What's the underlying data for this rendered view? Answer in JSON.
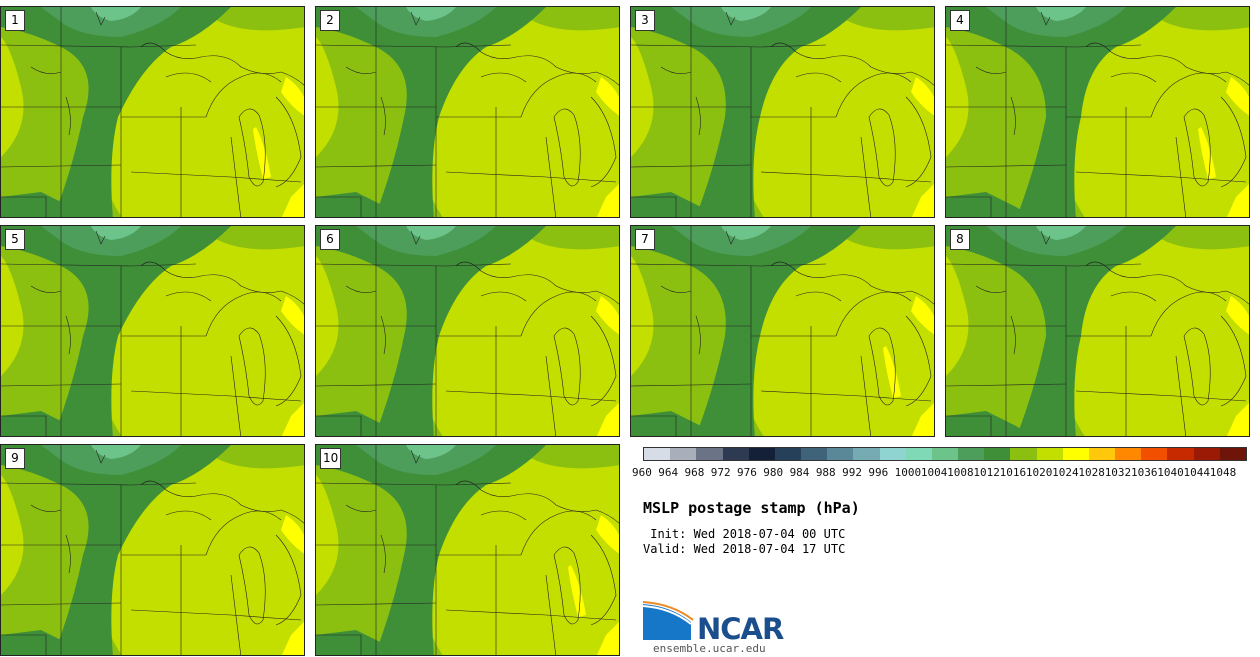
{
  "panels": [
    {
      "label": "1"
    },
    {
      "label": "2"
    },
    {
      "label": "3"
    },
    {
      "label": "4"
    },
    {
      "label": "5"
    },
    {
      "label": "6"
    },
    {
      "label": "7"
    },
    {
      "label": "8"
    },
    {
      "label": "9"
    },
    {
      "label": "10"
    }
  ],
  "colorbar": {
    "colors": [
      "#d7dde6",
      "#a8afba",
      "#6b7486",
      "#2e3a52",
      "#132038",
      "#26405a",
      "#3f6479",
      "#5a8898",
      "#76abb4",
      "#8fd4d0",
      "#7fd9b7",
      "#6dc48b",
      "#4e9e5b",
      "#3f8f38",
      "#8cc010",
      "#c2df00",
      "#ffff00",
      "#ffc80a",
      "#ff8800",
      "#f25000",
      "#c82a00",
      "#9a1a05",
      "#6e1408"
    ],
    "ticks": [
      "960",
      "964",
      "968",
      "972",
      "976",
      "980",
      "984",
      "988",
      "992",
      "996",
      "1000",
      "1004",
      "1008",
      "1012",
      "1016",
      "1020",
      "1024",
      "1028",
      "1032",
      "1036",
      "1040",
      "1044",
      "1048"
    ]
  },
  "title": "MSLP postage stamp (hPa)",
  "init_line": " Init: Wed 2018-07-04 00 UTC",
  "valid_line": "Valid: Wed 2018-07-04 17 UTC",
  "logo_text": "NCAR",
  "url": "ensemble.ucar.edu"
}
